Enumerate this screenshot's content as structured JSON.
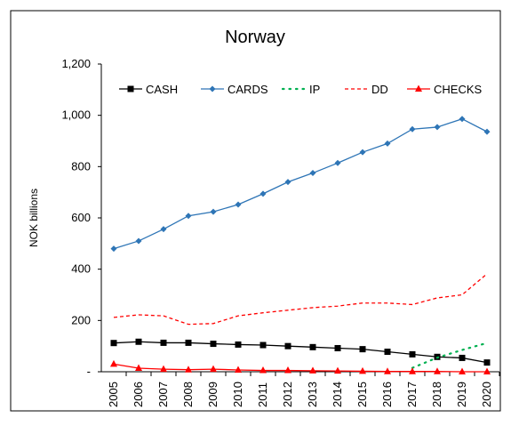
{
  "chart_data": {
    "type": "line",
    "title": "Norway",
    "y_label": "NOK billions",
    "categories": [
      "2005",
      "2006",
      "2007",
      "2008",
      "2009",
      "2010",
      "2011",
      "2012",
      "2013",
      "2014",
      "2015",
      "2016",
      "2017",
      "2018",
      "2019",
      "2020"
    ],
    "series": [
      {
        "name": "CASH",
        "color": "#000000",
        "marker": "square",
        "dash": "solid",
        "values": [
          112,
          117,
          113,
          113,
          109,
          106,
          104,
          100,
          96,
          92,
          88,
          78,
          68,
          58,
          54,
          36
        ]
      },
      {
        "name": "CARDS",
        "color": "#2e75b6",
        "marker": "diamond",
        "dash": "solid",
        "values": [
          480,
          510,
          556,
          608,
          624,
          652,
          694,
          740,
          775,
          814,
          856,
          890,
          946,
          954,
          986,
          936
        ]
      },
      {
        "name": "IP",
        "color": "#00b050",
        "marker": "none",
        "dash": "dot",
        "values": [
          null,
          null,
          null,
          null,
          null,
          null,
          null,
          null,
          null,
          null,
          null,
          null,
          15,
          55,
          85,
          112
        ]
      },
      {
        "name": "DD",
        "color": "#ff0000",
        "marker": "none",
        "dash": "dash",
        "values": [
          212,
          222,
          218,
          185,
          188,
          218,
          230,
          240,
          250,
          256,
          268,
          268,
          262,
          288,
          300,
          382
        ]
      },
      {
        "name": "CHECKS",
        "color": "#ff0000",
        "marker": "triangle",
        "dash": "solid",
        "values": [
          30,
          14,
          10,
          8,
          10,
          7,
          5,
          5,
          4,
          3,
          2,
          1,
          1,
          1,
          0,
          0
        ]
      }
    ],
    "ylim": [
      0,
      1200
    ],
    "yticks": [
      {
        "value": 0,
        "label": "-"
      },
      200,
      400,
      600,
      800,
      {
        "value": 1000,
        "label": "1,000"
      },
      {
        "value": 1200,
        "label": "1,200"
      }
    ],
    "legend": "top"
  }
}
